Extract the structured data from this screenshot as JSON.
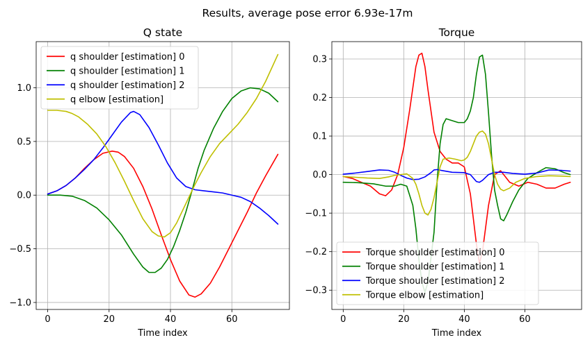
{
  "suptitle": "Results, average pose error 6.93e-17m",
  "chart_data": [
    {
      "type": "line",
      "title": "Q state",
      "xlabel": "Time index",
      "ylabel": "",
      "xlim": [
        -3.75,
        78.75
      ],
      "ylim": [
        -1.065,
        1.43
      ],
      "xticks": [
        0,
        20,
        40,
        60
      ],
      "yticks": [
        -1.0,
        -0.5,
        0.0,
        0.5,
        1.0
      ],
      "xtick_labels": [
        "0",
        "20",
        "40",
        "60"
      ],
      "ytick_labels": [
        "−1.0",
        "−0.5",
        "0.0",
        "0.5",
        "1.0"
      ],
      "grid": true,
      "legend_position": "upper-left",
      "series": [
        {
          "name": "q shoulder [estimation] 0",
          "color": "#ff0000",
          "x": [
            0,
            3,
            6,
            9,
            12,
            15,
            18,
            21,
            23,
            25,
            28,
            31,
            34,
            37,
            40,
            43,
            46,
            48,
            50,
            53,
            56,
            59,
            62,
            65,
            68,
            71,
            75
          ],
          "y": [
            0.01,
            0.04,
            0.09,
            0.16,
            0.25,
            0.33,
            0.39,
            0.41,
            0.4,
            0.36,
            0.25,
            0.08,
            -0.13,
            -0.37,
            -0.6,
            -0.8,
            -0.93,
            -0.95,
            -0.92,
            -0.82,
            -0.67,
            -0.5,
            -0.33,
            -0.16,
            0.02,
            0.18,
            0.38
          ]
        },
        {
          "name": "q shoulder [estimation] 1",
          "color": "#008000",
          "x": [
            0,
            4,
            8,
            12,
            16,
            20,
            24,
            28,
            31,
            33,
            35,
            37,
            39,
            41,
            43,
            45,
            47,
            49,
            51,
            54,
            57,
            60,
            63,
            66,
            69,
            72,
            75
          ],
          "y": [
            0.0,
            0.0,
            -0.01,
            -0.05,
            -0.12,
            -0.23,
            -0.37,
            -0.55,
            -0.67,
            -0.72,
            -0.72,
            -0.68,
            -0.6,
            -0.48,
            -0.33,
            -0.16,
            0.04,
            0.25,
            0.42,
            0.62,
            0.78,
            0.9,
            0.97,
            1.0,
            0.99,
            0.95,
            0.87
          ]
        },
        {
          "name": "q shoulder [estimation] 2",
          "color": "#0000ff",
          "x": [
            0,
            3,
            6,
            9,
            12,
            15,
            18,
            21,
            24,
            27,
            28,
            30,
            33,
            36,
            39,
            42,
            45,
            48,
            51,
            54,
            57,
            60,
            63,
            66,
            69,
            72,
            75
          ],
          "y": [
            0.01,
            0.04,
            0.09,
            0.16,
            0.24,
            0.33,
            0.44,
            0.56,
            0.68,
            0.77,
            0.78,
            0.75,
            0.63,
            0.47,
            0.3,
            0.16,
            0.08,
            0.05,
            0.04,
            0.03,
            0.02,
            0.0,
            -0.02,
            -0.06,
            -0.12,
            -0.19,
            -0.27
          ]
        },
        {
          "name": "q elbow [estimation]",
          "color": "#bfbf00",
          "x": [
            0,
            3,
            6,
            8,
            10,
            13,
            16,
            19,
            22,
            25,
            28,
            31,
            34,
            36,
            38,
            40,
            42,
            44,
            46,
            48,
            50,
            53,
            56,
            59,
            62,
            65,
            68,
            71,
            75
          ],
          "y": [
            0.79,
            0.79,
            0.78,
            0.76,
            0.73,
            0.66,
            0.57,
            0.45,
            0.3,
            0.13,
            -0.05,
            -0.22,
            -0.34,
            -0.38,
            -0.39,
            -0.35,
            -0.26,
            -0.14,
            -0.02,
            0.1,
            0.21,
            0.36,
            0.48,
            0.57,
            0.66,
            0.77,
            0.9,
            1.06,
            1.31
          ]
        }
      ]
    },
    {
      "type": "line",
      "title": "Torque",
      "xlabel": "Time index",
      "ylabel": "",
      "xlim": [
        -3.75,
        78.75
      ],
      "ylim": [
        -0.35,
        0.345
      ],
      "xticks": [
        0,
        20,
        40,
        60
      ],
      "yticks": [
        -0.3,
        -0.2,
        -0.1,
        0.0,
        0.1,
        0.2,
        0.3
      ],
      "xtick_labels": [
        "0",
        "20",
        "40",
        "60"
      ],
      "ytick_labels": [
        "−0.3",
        "−0.2",
        "−0.1",
        "0.0",
        "0.1",
        "0.2",
        "0.3"
      ],
      "grid": true,
      "legend_position": "lower-left",
      "series": [
        {
          "name": "Torque shoulder [estimation] 0",
          "color": "#ff0000",
          "x": [
            0,
            3,
            6,
            9,
            12,
            14,
            16,
            18,
            20,
            22,
            24,
            25,
            26,
            27,
            28,
            30,
            32,
            34,
            36,
            38,
            40,
            42,
            44,
            45,
            46,
            47,
            48,
            50,
            52,
            55,
            58,
            61,
            64,
            67,
            70,
            73,
            75
          ],
          "y": [
            -0.005,
            -0.01,
            -0.02,
            -0.03,
            -0.05,
            -0.055,
            -0.04,
            0.0,
            0.07,
            0.17,
            0.28,
            0.31,
            0.315,
            0.28,
            0.22,
            0.11,
            0.06,
            0.04,
            0.03,
            0.03,
            0.02,
            -0.05,
            -0.18,
            -0.23,
            -0.2,
            -0.14,
            -0.08,
            0.0,
            0.01,
            -0.02,
            -0.03,
            -0.02,
            -0.025,
            -0.035,
            -0.035,
            -0.025,
            -0.02
          ]
        },
        {
          "name": "Torque shoulder [estimation] 1",
          "color": "#008000",
          "x": [
            0,
            5,
            10,
            14,
            17,
            19,
            21,
            23,
            24,
            25,
            26,
            27,
            28,
            30,
            31,
            32,
            33,
            34,
            36,
            38,
            40,
            41,
            42,
            43,
            44,
            45,
            46,
            47,
            48,
            49,
            50,
            51,
            52,
            53,
            54,
            56,
            58,
            61,
            64,
            67,
            70,
            73,
            75
          ],
          "y": [
            -0.02,
            -0.021,
            -0.024,
            -0.03,
            -0.03,
            -0.025,
            -0.03,
            -0.08,
            -0.14,
            -0.22,
            -0.28,
            -0.305,
            -0.28,
            -0.15,
            -0.02,
            0.08,
            0.13,
            0.145,
            0.14,
            0.135,
            0.135,
            0.145,
            0.165,
            0.2,
            0.26,
            0.305,
            0.31,
            0.26,
            0.16,
            0.05,
            -0.04,
            -0.08,
            -0.115,
            -0.12,
            -0.105,
            -0.07,
            -0.04,
            -0.01,
            0.005,
            0.018,
            0.015,
            0.005,
            0.0
          ]
        },
        {
          "name": "Torque shoulder [estimation] 2",
          "color": "#0000ff",
          "x": [
            0,
            4,
            8,
            12,
            15,
            17,
            19,
            21,
            23,
            25,
            27,
            29,
            30,
            31,
            33,
            36,
            40,
            42,
            44,
            45,
            46,
            48,
            50,
            53,
            56,
            60,
            64,
            68,
            72,
            75
          ],
          "y": [
            0.001,
            0.004,
            0.008,
            0.012,
            0.011,
            0.006,
            -0.002,
            -0.009,
            -0.013,
            -0.012,
            -0.006,
            0.005,
            0.012,
            0.013,
            0.01,
            0.006,
            0.005,
            0.0,
            -0.018,
            -0.02,
            -0.015,
            0.0,
            0.006,
            0.006,
            0.003,
            0.001,
            0.004,
            0.012,
            0.011,
            0.009
          ]
        },
        {
          "name": "Torque elbow [estimation]",
          "color": "#bfbf00",
          "x": [
            0,
            4,
            8,
            12,
            15,
            17,
            19,
            21,
            23,
            24,
            25,
            26,
            27,
            28,
            29,
            30,
            31,
            32,
            33,
            35,
            37,
            39,
            40,
            41,
            42,
            43,
            44,
            45,
            46,
            47,
            48,
            49,
            50,
            51,
            52,
            53,
            55,
            57,
            60,
            64,
            68,
            72,
            75
          ],
          "y": [
            -0.005,
            -0.007,
            -0.009,
            -0.01,
            -0.006,
            -0.002,
            0.0,
            0.002,
            -0.01,
            -0.025,
            -0.05,
            -0.08,
            -0.1,
            -0.105,
            -0.09,
            -0.06,
            -0.02,
            0.02,
            0.04,
            0.043,
            0.04,
            0.036,
            0.038,
            0.045,
            0.06,
            0.08,
            0.1,
            0.11,
            0.113,
            0.105,
            0.08,
            0.04,
            0.0,
            -0.025,
            -0.038,
            -0.042,
            -0.035,
            -0.02,
            -0.01,
            -0.005,
            -0.003,
            -0.004,
            -0.005
          ]
        }
      ]
    }
  ]
}
